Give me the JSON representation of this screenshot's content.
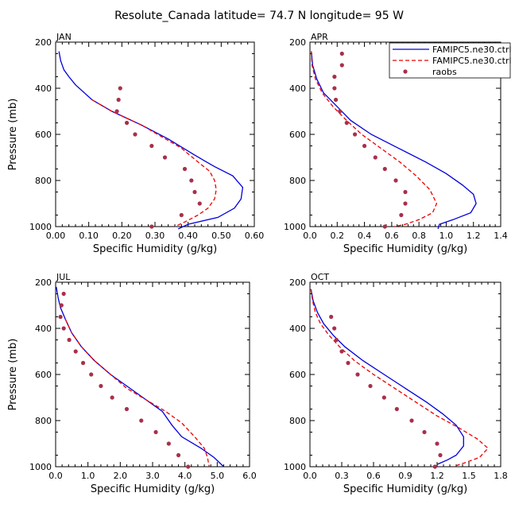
{
  "figure": {
    "title": "Resolute_Canada   latitude= 74.7 N longitude= 95 W",
    "legend": {
      "placement": "top-right of APR panel",
      "entries": [
        {
          "label": "FAMIPC5.ne30.ctrl",
          "color": "#0000dd",
          "style": "solid"
        },
        {
          "label": "FAMIPC5.ne30.ctrl",
          "color": "#ee0000",
          "style": "dashed"
        },
        {
          "label": "raobs",
          "color": "#a8304c",
          "style": "dots"
        }
      ]
    }
  },
  "chart_data": [
    {
      "type": "line",
      "title": "JAN",
      "xlabel": "Specific Humidity (g/kg)",
      "ylabel": "Pressure (mb)",
      "xlim": [
        0,
        0.6
      ],
      "ylim": [
        1000,
        200
      ],
      "xticks": [
        0,
        0.1,
        0.2,
        0.3,
        0.4,
        0.5,
        0.6
      ],
      "xtick_labels": [
        "0.00",
        "0.10",
        "0.20",
        "0.30",
        "0.40",
        "0.50",
        "0.60"
      ],
      "yticks": [
        200,
        400,
        600,
        800,
        1000
      ],
      "series": [
        {
          "name": "FAMIPC5.ne30.ctrl",
          "style": "solid",
          "color": "#0000dd",
          "points": [
            [
              0.01,
              240
            ],
            [
              0.015,
              280
            ],
            [
              0.025,
              320
            ],
            [
              0.04,
              350
            ],
            [
              0.06,
              385
            ],
            [
              0.11,
              450
            ],
            [
              0.17,
              500
            ],
            [
              0.26,
              560
            ],
            [
              0.34,
              620
            ],
            [
              0.42,
              690
            ],
            [
              0.48,
              740
            ],
            [
              0.535,
              780
            ],
            [
              0.565,
              830
            ],
            [
              0.56,
              880
            ],
            [
              0.54,
              920
            ],
            [
              0.49,
              960
            ],
            [
              0.4,
              990
            ],
            [
              0.37,
              1010
            ]
          ]
        },
        {
          "name": "FAMIPC5.ne30.ctrl",
          "style": "dashed",
          "color": "#ee0000",
          "points": [
            [
              0.11,
              450
            ],
            [
              0.17,
              500
            ],
            [
              0.26,
              560
            ],
            [
              0.32,
              610
            ],
            [
              0.38,
              660
            ],
            [
              0.43,
              720
            ],
            [
              0.465,
              760
            ],
            [
              0.48,
              800
            ],
            [
              0.485,
              840
            ],
            [
              0.48,
              880
            ],
            [
              0.46,
              920
            ],
            [
              0.43,
              950
            ],
            [
              0.39,
              980
            ],
            [
              0.36,
              1000
            ]
          ]
        },
        {
          "name": "raobs",
          "style": "dots",
          "color": "#a8304c",
          "points": [
            [
              0.195,
              400
            ],
            [
              0.19,
              450
            ],
            [
              0.185,
              500
            ],
            [
              0.215,
              550
            ],
            [
              0.24,
              600
            ],
            [
              0.29,
              650
            ],
            [
              0.33,
              700
            ],
            [
              0.39,
              750
            ],
            [
              0.41,
              800
            ],
            [
              0.42,
              850
            ],
            [
              0.435,
              900
            ],
            [
              0.38,
              950
            ],
            [
              0.29,
              1000
            ]
          ]
        }
      ]
    },
    {
      "type": "line",
      "title": "APR",
      "xlabel": "Specific Humidity (g/kg)",
      "ylabel": "",
      "xlim": [
        0,
        1.4
      ],
      "ylim": [
        1000,
        200
      ],
      "xticks": [
        0,
        0.2,
        0.4,
        0.6,
        0.8,
        1.0,
        1.2,
        1.4
      ],
      "xtick_labels": [
        "0.0",
        "0.2",
        "0.4",
        "0.6",
        "0.8",
        "1.0",
        "1.2",
        "1.4"
      ],
      "yticks": [
        200,
        400,
        600,
        800,
        1000
      ],
      "series": [
        {
          "name": "FAMIPC5.ne30.ctrl",
          "style": "solid",
          "color": "#0000dd",
          "points": [
            [
              0.01,
              240
            ],
            [
              0.02,
              300
            ],
            [
              0.05,
              360
            ],
            [
              0.1,
              420
            ],
            [
              0.2,
              480
            ],
            [
              0.3,
              540
            ],
            [
              0.45,
              600
            ],
            [
              0.65,
              660
            ],
            [
              0.85,
              720
            ],
            [
              1.0,
              770
            ],
            [
              1.12,
              820
            ],
            [
              1.2,
              860
            ],
            [
              1.22,
              900
            ],
            [
              1.18,
              940
            ],
            [
              1.05,
              970
            ],
            [
              0.95,
              990
            ],
            [
              0.94,
              1010
            ]
          ]
        },
        {
          "name": "FAMIPC5.ne30.ctrl",
          "style": "dashed",
          "color": "#ee0000",
          "points": [
            [
              0.01,
              240
            ],
            [
              0.015,
              300
            ],
            [
              0.04,
              360
            ],
            [
              0.09,
              420
            ],
            [
              0.17,
              480
            ],
            [
              0.27,
              540
            ],
            [
              0.38,
              600
            ],
            [
              0.52,
              660
            ],
            [
              0.66,
              720
            ],
            [
              0.78,
              780
            ],
            [
              0.88,
              840
            ],
            [
              0.93,
              900
            ],
            [
              0.9,
              940
            ],
            [
              0.8,
              970
            ],
            [
              0.7,
              990
            ],
            [
              0.62,
              1000
            ]
          ]
        },
        {
          "name": "raobs",
          "style": "dots",
          "color": "#a8304c",
          "points": [
            [
              0.235,
              250
            ],
            [
              0.235,
              300
            ],
            [
              0.18,
              350
            ],
            [
              0.18,
              400
            ],
            [
              0.19,
              450
            ],
            [
              0.22,
              500
            ],
            [
              0.27,
              550
            ],
            [
              0.33,
              600
            ],
            [
              0.4,
              650
            ],
            [
              0.48,
              700
            ],
            [
              0.55,
              750
            ],
            [
              0.63,
              800
            ],
            [
              0.7,
              850
            ],
            [
              0.7,
              900
            ],
            [
              0.67,
              950
            ],
            [
              0.55,
              1000
            ]
          ]
        }
      ]
    },
    {
      "type": "line",
      "title": "JUL",
      "xlabel": "Specific Humidity (g/kg)",
      "ylabel": "Pressure (mb)",
      "xlim": [
        0,
        6
      ],
      "ylim": [
        1000,
        200
      ],
      "xticks": [
        0,
        1,
        2,
        3,
        4,
        5,
        6
      ],
      "xtick_labels": [
        "0.0",
        "1.0",
        "2.0",
        "3.0",
        "4.0",
        "5.0",
        "6.0"
      ],
      "yticks": [
        200,
        400,
        600,
        800,
        1000
      ],
      "series": [
        {
          "name": "FAMIPC5.ne30.ctrl",
          "style": "solid",
          "color": "#0000dd",
          "points": [
            [
              0.02,
              220
            ],
            [
              0.08,
              270
            ],
            [
              0.15,
              310
            ],
            [
              0.3,
              360
            ],
            [
              0.5,
              420
            ],
            [
              0.8,
              480
            ],
            [
              1.2,
              540
            ],
            [
              1.7,
              600
            ],
            [
              2.2,
              650
            ],
            [
              2.8,
              710
            ],
            [
              3.3,
              760
            ],
            [
              3.6,
              820
            ],
            [
              3.9,
              870
            ],
            [
              4.5,
              920
            ],
            [
              4.9,
              960
            ],
            [
              5.2,
              1000
            ]
          ]
        },
        {
          "name": "FAMIPC5.ne30.ctrl",
          "style": "dashed",
          "color": "#ee0000",
          "points": [
            [
              0.3,
              360
            ],
            [
              0.5,
              420
            ],
            [
              0.8,
              480
            ],
            [
              1.2,
              540
            ],
            [
              1.7,
              600
            ],
            [
              2.2,
              660
            ],
            [
              2.8,
              710
            ],
            [
              3.4,
              760
            ],
            [
              3.9,
              810
            ],
            [
              4.3,
              870
            ],
            [
              4.6,
              920
            ],
            [
              4.7,
              960
            ],
            [
              4.75,
              1000
            ]
          ]
        },
        {
          "name": "raobs",
          "style": "dots",
          "color": "#a8304c",
          "points": [
            [
              0.25,
              250
            ],
            [
              0.18,
              300
            ],
            [
              0.15,
              350
            ],
            [
              0.25,
              400
            ],
            [
              0.42,
              450
            ],
            [
              0.62,
              500
            ],
            [
              0.85,
              550
            ],
            [
              1.1,
              600
            ],
            [
              1.4,
              650
            ],
            [
              1.75,
              700
            ],
            [
              2.2,
              750
            ],
            [
              2.65,
              800
            ],
            [
              3.1,
              850
            ],
            [
              3.5,
              900
            ],
            [
              3.8,
              950
            ],
            [
              4.1,
              1000
            ]
          ]
        }
      ]
    },
    {
      "type": "line",
      "title": "OCT",
      "xlabel": "Specific Humidity (g/kg)",
      "ylabel": "",
      "xlim": [
        0,
        1.8
      ],
      "ylim": [
        1000,
        200
      ],
      "xticks": [
        0,
        0.3,
        0.6,
        0.9,
        1.2,
        1.5,
        1.8
      ],
      "xtick_labels": [
        "0.0",
        "0.3",
        "0.6",
        "0.9",
        "1.2",
        "1.5",
        "1.8"
      ],
      "yticks": [
        200,
        400,
        600,
        800,
        1000
      ],
      "series": [
        {
          "name": "FAMIPC5.ne30.ctrl",
          "style": "solid",
          "color": "#0000dd",
          "points": [
            [
              0.01,
              230
            ],
            [
              0.03,
              280
            ],
            [
              0.07,
              330
            ],
            [
              0.13,
              380
            ],
            [
              0.22,
              430
            ],
            [
              0.33,
              480
            ],
            [
              0.5,
              540
            ],
            [
              0.7,
              600
            ],
            [
              0.9,
              660
            ],
            [
              1.1,
              720
            ],
            [
              1.25,
              770
            ],
            [
              1.38,
              820
            ],
            [
              1.45,
              870
            ],
            [
              1.45,
              910
            ],
            [
              1.38,
              950
            ],
            [
              1.3,
              970
            ],
            [
              1.2,
              990
            ]
          ]
        },
        {
          "name": "FAMIPC5.ne30.ctrl",
          "style": "dashed",
          "color": "#ee0000",
          "points": [
            [
              0.01,
              230
            ],
            [
              0.025,
              280
            ],
            [
              0.05,
              330
            ],
            [
              0.1,
              380
            ],
            [
              0.18,
              430
            ],
            [
              0.28,
              480
            ],
            [
              0.42,
              540
            ],
            [
              0.6,
              600
            ],
            [
              0.8,
              660
            ],
            [
              1.0,
              720
            ],
            [
              1.2,
              780
            ],
            [
              1.4,
              830
            ],
            [
              1.58,
              880
            ],
            [
              1.68,
              920
            ],
            [
              1.6,
              960
            ],
            [
              1.45,
              985
            ],
            [
              1.35,
              1000
            ]
          ]
        },
        {
          "name": "raobs",
          "style": "dots",
          "color": "#a8304c",
          "points": [
            [
              0.2,
              350
            ],
            [
              0.23,
              400
            ],
            [
              0.25,
              450
            ],
            [
              0.3,
              500
            ],
            [
              0.36,
              550
            ],
            [
              0.45,
              600
            ],
            [
              0.57,
              650
            ],
            [
              0.7,
              700
            ],
            [
              0.82,
              750
            ],
            [
              0.96,
              800
            ],
            [
              1.08,
              850
            ],
            [
              1.2,
              900
            ],
            [
              1.23,
              950
            ],
            [
              1.18,
              1000
            ]
          ]
        }
      ]
    }
  ]
}
